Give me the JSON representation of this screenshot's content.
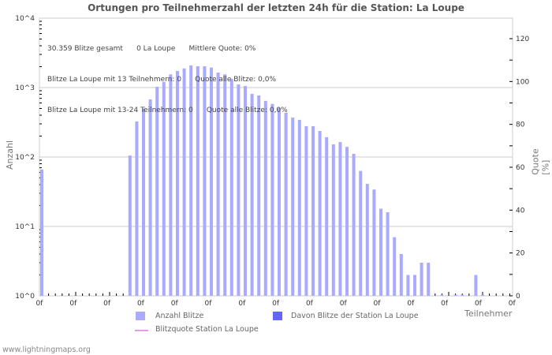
{
  "title": "Ortungen pro Teilnehmerzahl der letzten 24h für die Station: La Loupe",
  "info": {
    "line1": "30.359 Blitze gesamt      0 La Loupe      Mittlere Quote: 0%",
    "line2": "Blitze La Loupe mit 13 Teilnehmern: 0      Quote alle Blitze: 0,0%",
    "line3": "Blitze La Loupe mit 13-24 Teilnehmern: 0      Quote alle Blitze: 0,0%"
  },
  "legend": {
    "anzahl": "Anzahl Blitze",
    "davon": "Davon Blitze der Station La Loupe",
    "quote": "Blitzquote Station La Loupe"
  },
  "footer": "www.lightningmaps.org",
  "colors": {
    "bar": "#aaaaff",
    "station_bar": "#6666ff",
    "quote_line": "#e699ee",
    "grid": "#cccccc"
  },
  "chart_data": {
    "type": "bar",
    "title": "Ortungen pro Teilnehmerzahl der letzten 24h für die Station: La Loupe",
    "xlabel": "Teilnehmer",
    "ylabel": "Anzahl",
    "y2label": "Quote [%]",
    "yscale": "log",
    "ylim": [
      1,
      10000
    ],
    "y_ticks": [
      "10^0",
      "10^1",
      "10^2",
      "10^3",
      "10^4"
    ],
    "y2lim": [
      0,
      130
    ],
    "y2_ticks": [
      0,
      20,
      40,
      60,
      80,
      100,
      120
    ],
    "x_tick_labels": [
      "0f",
      "0f",
      "0f",
      "0f",
      "0f",
      "0f",
      "0f",
      "0f",
      "0f",
      "0f",
      "0f",
      "0f",
      "0f",
      "0f",
      "0f"
    ],
    "grid": true,
    "legend_position": "bottom",
    "series": [
      {
        "name": "Anzahl Blitze",
        "values": [
          66,
          0,
          0,
          0,
          0,
          0,
          0,
          0,
          0,
          0,
          0,
          0,
          0,
          105,
          325,
          495,
          676,
          1026,
          1200,
          1549,
          1738,
          1884,
          2085,
          2030,
          2030,
          1940,
          1645,
          1549,
          1327,
          1110,
          1054,
          811,
          771,
          643,
          581,
          510,
          434,
          369,
          342,
          278,
          278,
          237,
          193,
          152,
          164,
          140,
          111,
          63,
          41,
          34,
          18,
          16,
          7,
          4,
          2,
          2,
          3,
          3,
          0,
          1,
          0,
          1,
          1,
          0,
          2,
          1,
          0,
          0,
          0,
          0
        ]
      },
      {
        "name": "Davon Blitze der Station La Loupe",
        "values": [
          0,
          0,
          0,
          0,
          0,
          0,
          0,
          0,
          0,
          0,
          0,
          0,
          0,
          0,
          0,
          0,
          0,
          0,
          0,
          0,
          0,
          0,
          0,
          0,
          0,
          0,
          0,
          0,
          0,
          0,
          0,
          0,
          0,
          0,
          0,
          0,
          0,
          0,
          0,
          0,
          0,
          0,
          0,
          0,
          0,
          0,
          0,
          0,
          0,
          0,
          0,
          0,
          0,
          0,
          0,
          0,
          0,
          0,
          0,
          0,
          0,
          0,
          0,
          0,
          0,
          0,
          0,
          0,
          0,
          0
        ]
      },
      {
        "name": "Blitzquote Station La Loupe",
        "values": []
      }
    ]
  }
}
